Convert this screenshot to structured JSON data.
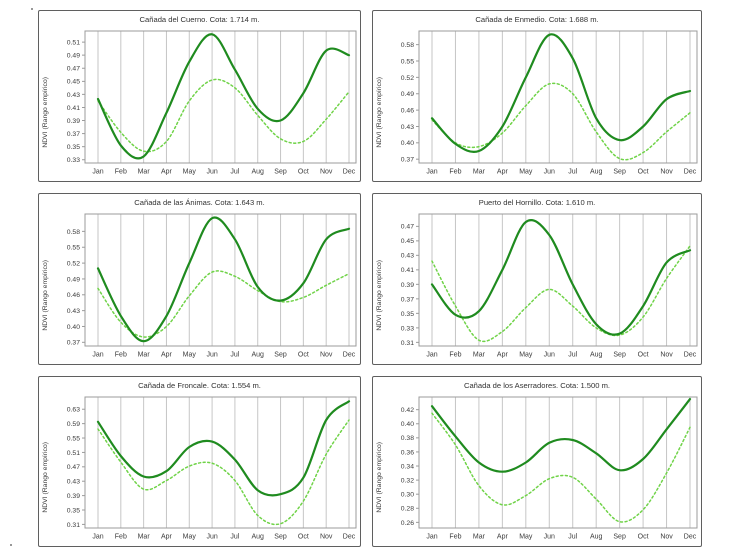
{
  "figure": {
    "ylabel": "NDVI (Rango empírico)",
    "colors": {
      "solid_line": "#1f8b1f",
      "dashed_line": "#70d348",
      "grid": "#c6c6c6",
      "frame": "#9b9b9b",
      "text": "#3b3b3b"
    }
  },
  "chart_data": [
    {
      "type": "line",
      "title": "Cañada del Cuerno. Cota: 1.714 m.",
      "ylabel": "NDVI (Rango empírico)",
      "x": [
        "Jan",
        "Feb",
        "Mar",
        "Apr",
        "May",
        "Jun",
        "Jul",
        "Aug",
        "Sep",
        "Oct",
        "Nov",
        "Dec"
      ],
      "ylim": [
        0.325,
        0.527
      ],
      "yticks": [
        0.33,
        0.35,
        0.37,
        0.39,
        0.41,
        0.43,
        0.45,
        0.47,
        0.49,
        0.51
      ],
      "grid": "vertical-monthly",
      "legend": "none",
      "series": [
        {
          "name": "NDVI curve solid dark green",
          "style": "solid",
          "values": [
            0.423,
            0.352,
            0.335,
            0.402,
            0.48,
            0.522,
            0.468,
            0.408,
            0.39,
            0.432,
            0.497,
            0.49
          ]
        },
        {
          "name": "NDVI curve dashed light green",
          "style": "dashed",
          "values": [
            0.42,
            0.372,
            0.343,
            0.358,
            0.42,
            0.452,
            0.44,
            0.398,
            0.362,
            0.358,
            0.392,
            0.434
          ]
        }
      ]
    },
    {
      "type": "line",
      "title": "Cañada de Enmedio. Cota: 1.688 m.",
      "ylabel": "NDVI (Rango empírico)",
      "x": [
        "Jan",
        "Feb",
        "Mar",
        "Apr",
        "May",
        "Jun",
        "Jul",
        "Aug",
        "Sep",
        "Oct",
        "Nov",
        "Dec"
      ],
      "ylim": [
        0.363,
        0.605
      ],
      "yticks": [
        0.37,
        0.4,
        0.43,
        0.46,
        0.49,
        0.52,
        0.55,
        0.58
      ],
      "grid": "vertical-monthly",
      "legend": "none",
      "series": [
        {
          "name": "NDVI curve solid dark green",
          "style": "solid",
          "values": [
            0.445,
            0.398,
            0.385,
            0.43,
            0.52,
            0.598,
            0.555,
            0.445,
            0.405,
            0.43,
            0.48,
            0.495
          ]
        },
        {
          "name": "NDVI curve dashed light green",
          "style": "dashed",
          "values": [
            0.442,
            0.4,
            0.393,
            0.418,
            0.468,
            0.508,
            0.49,
            0.42,
            0.371,
            0.382,
            0.42,
            0.455
          ]
        }
      ]
    },
    {
      "type": "line",
      "title": "Cañada de las Ánimas. Cota: 1.643 m.",
      "ylabel": "NDVI (Rango empírico)",
      "x": [
        "Jan",
        "Feb",
        "Mar",
        "Apr",
        "May",
        "Jun",
        "Jul",
        "Aug",
        "Sep",
        "Oct",
        "Nov",
        "Dec"
      ],
      "ylim": [
        0.363,
        0.613
      ],
      "yticks": [
        0.37,
        0.4,
        0.43,
        0.46,
        0.49,
        0.52,
        0.55,
        0.58
      ],
      "grid": "vertical-monthly",
      "legend": "none",
      "series": [
        {
          "name": "NDVI curve solid dark green",
          "style": "solid",
          "values": [
            0.51,
            0.42,
            0.372,
            0.42,
            0.52,
            0.605,
            0.565,
            0.475,
            0.449,
            0.482,
            0.565,
            0.585
          ]
        },
        {
          "name": "NDVI curve dashed light green",
          "style": "dashed",
          "values": [
            0.472,
            0.408,
            0.38,
            0.4,
            0.458,
            0.503,
            0.495,
            0.468,
            0.447,
            0.455,
            0.478,
            0.5
          ]
        }
      ]
    },
    {
      "type": "line",
      "title": "Puerto del Hornillo. Cota: 1.610 m.",
      "ylabel": "NDVI (Rango empírico)",
      "x": [
        "Jan",
        "Feb",
        "Mar",
        "Apr",
        "May",
        "Jun",
        "Jul",
        "Aug",
        "Sep",
        "Oct",
        "Nov",
        "Dec"
      ],
      "ylim": [
        0.305,
        0.487
      ],
      "yticks": [
        0.31,
        0.33,
        0.35,
        0.37,
        0.39,
        0.41,
        0.43,
        0.45,
        0.47
      ],
      "grid": "vertical-monthly",
      "legend": "none",
      "series": [
        {
          "name": "NDVI curve solid dark green",
          "style": "solid",
          "values": [
            0.39,
            0.348,
            0.353,
            0.41,
            0.476,
            0.458,
            0.39,
            0.335,
            0.322,
            0.36,
            0.42,
            0.437
          ]
        },
        {
          "name": "NDVI curve dashed light green",
          "style": "dashed",
          "values": [
            0.422,
            0.36,
            0.313,
            0.325,
            0.358,
            0.383,
            0.36,
            0.33,
            0.32,
            0.345,
            0.398,
            0.443
          ]
        }
      ]
    },
    {
      "type": "line",
      "title": "Cañada de Froncale. Cota: 1.554 m.",
      "ylabel": "NDVI (Rango empírico)",
      "x": [
        "Jan",
        "Feb",
        "Mar",
        "Apr",
        "May",
        "Jun",
        "Jul",
        "Aug",
        "Sep",
        "Oct",
        "Nov",
        "Dec"
      ],
      "ylim": [
        0.3,
        0.664
      ],
      "yticks": [
        0.31,
        0.35,
        0.39,
        0.43,
        0.47,
        0.51,
        0.55,
        0.59,
        0.63
      ],
      "grid": "vertical-monthly",
      "legend": "none",
      "series": [
        {
          "name": "NDVI curve solid dark green",
          "style": "solid",
          "values": [
            0.595,
            0.5,
            0.443,
            0.458,
            0.525,
            0.54,
            0.49,
            0.405,
            0.394,
            0.44,
            0.6,
            0.652
          ]
        },
        {
          "name": "NDVI curve dashed light green",
          "style": "dashed",
          "values": [
            0.575,
            0.483,
            0.408,
            0.432,
            0.472,
            0.48,
            0.432,
            0.335,
            0.312,
            0.375,
            0.505,
            0.6
          ]
        }
      ]
    },
    {
      "type": "line",
      "title": "Cañada de los Aserradores. Cota: 1.500 m.",
      "ylabel": "NDVI (Rango empírico)",
      "x": [
        "Jan",
        "Feb",
        "Mar",
        "Apr",
        "May",
        "Jun",
        "Jul",
        "Aug",
        "Sep",
        "Oct",
        "Nov",
        "Dec"
      ],
      "ylim": [
        0.252,
        0.438
      ],
      "yticks": [
        0.26,
        0.28,
        0.3,
        0.32,
        0.34,
        0.36,
        0.38,
        0.4,
        0.42
      ],
      "grid": "vertical-monthly",
      "legend": "none",
      "series": [
        {
          "name": "NDVI curve solid dark green",
          "style": "solid",
          "values": [
            0.425,
            0.382,
            0.345,
            0.332,
            0.345,
            0.373,
            0.377,
            0.358,
            0.334,
            0.35,
            0.392,
            0.435
          ]
        },
        {
          "name": "NDVI curve dashed light green",
          "style": "dashed",
          "values": [
            0.415,
            0.37,
            0.312,
            0.285,
            0.298,
            0.322,
            0.324,
            0.293,
            0.261,
            0.278,
            0.33,
            0.395
          ]
        }
      ]
    }
  ]
}
